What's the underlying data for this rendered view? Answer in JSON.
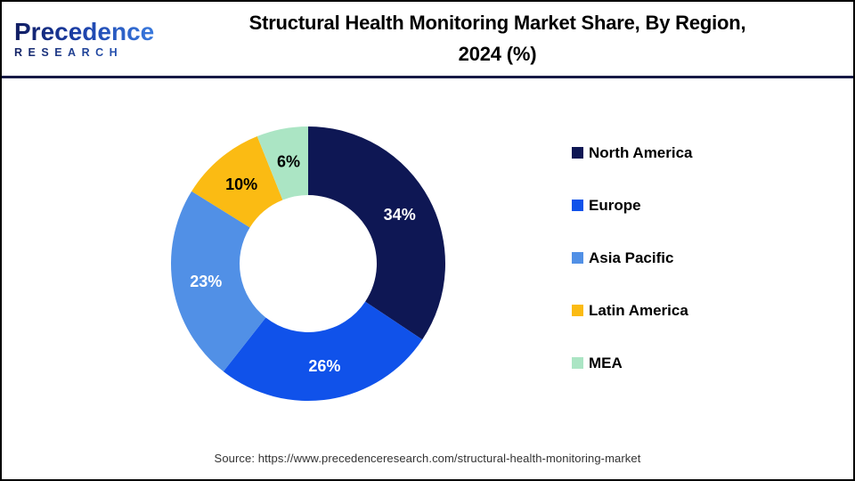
{
  "header": {
    "logo": {
      "line1": "Precedence",
      "line2": "RESEARCH"
    },
    "title_line1": "Structural Health Monitoring Market Share, By Region,",
    "title_line2": "2024 (%)"
  },
  "chart_data": {
    "type": "pie",
    "subtype": "donut",
    "title": "Structural Health Monitoring Market Share, By Region, 2024 (%)",
    "unit": "%",
    "start_angle_deg": 0,
    "direction": "clockwise",
    "inner_radius_ratio": 0.5,
    "legend_position": "right",
    "categories": [
      "North America",
      "Europe",
      "Asia Pacific",
      "Latin America",
      "MEA"
    ],
    "values": [
      34,
      26,
      23,
      10,
      6
    ],
    "slices": [
      {
        "label": "North America",
        "value": 34,
        "color": "#0E1754",
        "label_color": "#FFFFFF"
      },
      {
        "label": "Europe",
        "value": 26,
        "color": "#1052EA",
        "label_color": "#FFFFFF"
      },
      {
        "label": "Asia Pacific",
        "value": 23,
        "color": "#5190E6",
        "label_color": "#FFFFFF"
      },
      {
        "label": "Latin America",
        "value": 10,
        "color": "#FBBB13",
        "label_color": "#000000"
      },
      {
        "label": "MEA",
        "value": 6,
        "color": "#ABE5C4",
        "label_color": "#000000"
      }
    ]
  },
  "footer": {
    "source": "Source: https://www.precedenceresearch.com/structural-health-monitoring-market"
  },
  "colors": {
    "border": "#000000",
    "divider": "#161A45",
    "background": "#FFFFFF",
    "title_text": "#000000",
    "source_text": "#333333"
  }
}
